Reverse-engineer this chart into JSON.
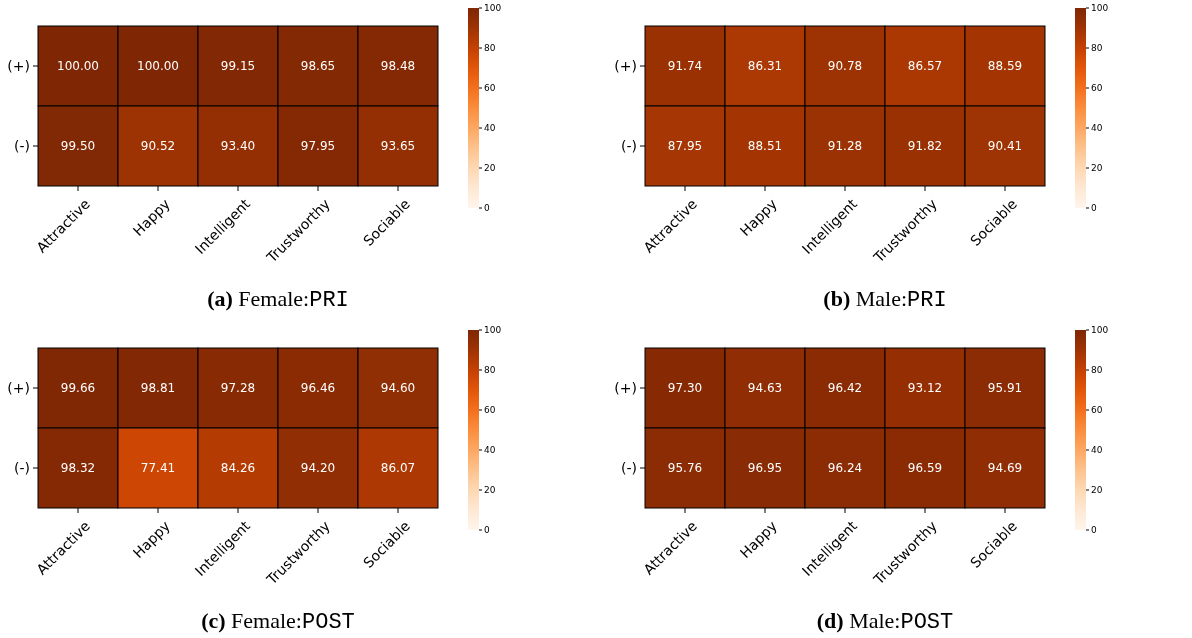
{
  "chart_data": [
    {
      "type": "heatmap",
      "title": "(a) Female:PRI",
      "categories": [
        "Attractive",
        "Happy",
        "Intelligent",
        "Trustworthy",
        "Sociable"
      ],
      "y_categories": [
        "(+)",
        "(-)"
      ],
      "cells": [
        [
          100.0,
          100.0,
          99.15,
          98.65,
          98.48
        ],
        [
          99.5,
          90.52,
          93.4,
          97.95,
          93.65
        ]
      ],
      "cell_labels": [
        [
          "100.00",
          "100.00",
          "99.15",
          "98.65",
          "98.48"
        ],
        [
          "99.50",
          "90.52",
          "93.40",
          "97.95",
          "93.65"
        ]
      ],
      "clim": [
        0,
        100
      ],
      "cticks": [
        0,
        20,
        40,
        60,
        80,
        100
      ]
    },
    {
      "type": "heatmap",
      "title": "(b) Male:PRI",
      "categories": [
        "Attractive",
        "Happy",
        "Intelligent",
        "Trustworthy",
        "Sociable"
      ],
      "y_categories": [
        "(+)",
        "(-)"
      ],
      "cells": [
        [
          91.74,
          86.31,
          90.78,
          86.57,
          88.59
        ],
        [
          87.95,
          88.51,
          91.28,
          91.82,
          90.41
        ]
      ],
      "cell_labels": [
        [
          "91.74",
          "86.31",
          "90.78",
          "86.57",
          "88.59"
        ],
        [
          "87.95",
          "88.51",
          "91.28",
          "91.82",
          "90.41"
        ]
      ],
      "clim": [
        0,
        100
      ],
      "cticks": [
        0,
        20,
        40,
        60,
        80,
        100
      ]
    },
    {
      "type": "heatmap",
      "title": "(c) Female:POST",
      "categories": [
        "Attractive",
        "Happy",
        "Intelligent",
        "Trustworthy",
        "Sociable"
      ],
      "y_categories": [
        "(+)",
        "(-)"
      ],
      "cells": [
        [
          99.66,
          98.81,
          97.28,
          96.46,
          94.6
        ],
        [
          98.32,
          77.41,
          84.26,
          94.2,
          86.07
        ]
      ],
      "cell_labels": [
        [
          "99.66",
          "98.81",
          "97.28",
          "96.46",
          "94.60"
        ],
        [
          "98.32",
          "77.41",
          "84.26",
          "94.20",
          "86.07"
        ]
      ],
      "clim": [
        0,
        100
      ],
      "cticks": [
        0,
        20,
        40,
        60,
        80,
        100
      ]
    },
    {
      "type": "heatmap",
      "title": "(d) Male:POST",
      "categories": [
        "Attractive",
        "Happy",
        "Intelligent",
        "Trustworthy",
        "Sociable"
      ],
      "y_categories": [
        "(+)",
        "(-)"
      ],
      "cells": [
        [
          97.3,
          94.63,
          96.42,
          93.12,
          95.91
        ],
        [
          95.76,
          96.95,
          96.24,
          96.59,
          94.69
        ]
      ],
      "cell_labels": [
        [
          "97.30",
          "94.63",
          "96.42",
          "93.12",
          "95.91"
        ],
        [
          "95.76",
          "96.95",
          "96.24",
          "96.59",
          "94.69"
        ]
      ],
      "clim": [
        0,
        100
      ],
      "cticks": [
        0,
        20,
        40,
        60,
        80,
        100
      ]
    }
  ]
}
